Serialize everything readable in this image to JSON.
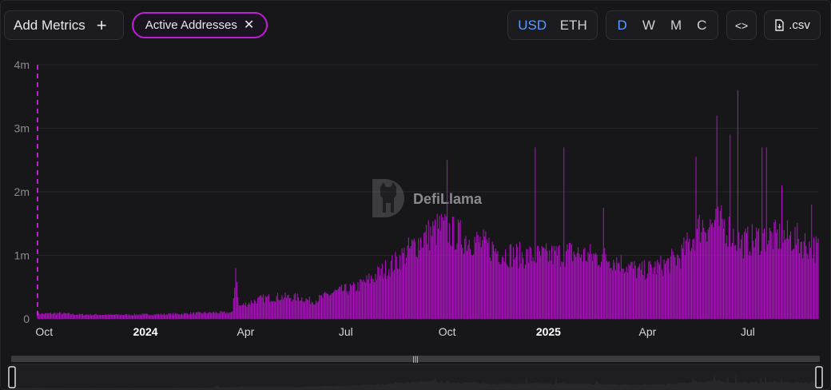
{
  "toolbar": {
    "add_metrics_label": "Add Metrics",
    "add_icon": "plus-icon",
    "metric_chip_label": "Active Addresses",
    "remove_icon": "close-icon",
    "currency_options": [
      "USD",
      "ETH"
    ],
    "currency_selected": "USD",
    "interval_options": [
      "D",
      "W",
      "M",
      "C"
    ],
    "interval_selected": "D",
    "embed_icon": "code-icon",
    "csv_label": ".csv",
    "csv_icon": "download-file-icon"
  },
  "watermark": {
    "text": "DefiLlama",
    "icon": "llama-logo-icon"
  },
  "colors": {
    "series": "#b010c4",
    "accent": "#5b9bff",
    "chip_border": "#c21dd6"
  },
  "chart_data": {
    "type": "bar",
    "title": "",
    "xlabel": "",
    "ylabel": "",
    "ylim": [
      0,
      4000000
    ],
    "y_ticks": [
      {
        "value": 0,
        "label": "0"
      },
      {
        "value": 1000000,
        "label": "1m"
      },
      {
        "value": 2000000,
        "label": "2m"
      },
      {
        "value": 3000000,
        "label": "3m"
      },
      {
        "value": 4000000,
        "label": "4m"
      }
    ],
    "x_range": [
      "2023-09-25",
      "2025-09-03"
    ],
    "x_ticks": [
      {
        "date": "2023-10-01",
        "label": "Oct",
        "bold": false
      },
      {
        "date": "2024-01-01",
        "label": "2024",
        "bold": true
      },
      {
        "date": "2024-04-01",
        "label": "Apr",
        "bold": false
      },
      {
        "date": "2024-07-01",
        "label": "Jul",
        "bold": false
      },
      {
        "date": "2024-10-01",
        "label": "Oct",
        "bold": false
      },
      {
        "date": "2025-01-01",
        "label": "2025",
        "bold": true
      },
      {
        "date": "2025-04-01",
        "label": "Apr",
        "bold": false
      },
      {
        "date": "2025-07-01",
        "label": "Jul",
        "bold": false
      }
    ],
    "grid": true,
    "series": [
      {
        "name": "Active Addresses",
        "color": "#b010c4",
        "frequency": "daily",
        "points": [
          [
            "2023-09-25",
            80000
          ],
          [
            "2023-10-15",
            90000
          ],
          [
            "2023-11-01",
            70000
          ],
          [
            "2023-12-01",
            65000
          ],
          [
            "2024-01-01",
            70000
          ],
          [
            "2024-02-01",
            80000
          ],
          [
            "2024-03-01",
            100000
          ],
          [
            "2024-03-20",
            100000
          ],
          [
            "2024-03-23",
            800000
          ],
          [
            "2024-03-26",
            200000
          ],
          [
            "2024-04-15",
            320000
          ],
          [
            "2024-05-01",
            350000
          ],
          [
            "2024-05-20",
            340000
          ],
          [
            "2024-06-01",
            280000
          ],
          [
            "2024-06-20",
            420000
          ],
          [
            "2024-07-10",
            500000
          ],
          [
            "2024-07-25",
            650000
          ],
          [
            "2024-08-15",
            900000
          ],
          [
            "2024-09-10",
            1300000
          ],
          [
            "2024-09-25",
            1450000
          ],
          [
            "2024-10-15",
            1300000
          ],
          [
            "2024-11-01",
            1200000
          ],
          [
            "2024-11-20",
            1050000
          ],
          [
            "2024-12-10",
            1000000
          ],
          [
            "2025-01-01",
            1000000
          ],
          [
            "2025-01-20",
            1050000
          ],
          [
            "2025-02-10",
            1000000
          ],
          [
            "2025-03-01",
            950000
          ],
          [
            "2025-03-25",
            750000
          ],
          [
            "2025-04-15",
            850000
          ],
          [
            "2025-05-01",
            1000000
          ],
          [
            "2025-05-20",
            1500000
          ],
          [
            "2025-06-10",
            1500000
          ],
          [
            "2025-06-25",
            1200000
          ],
          [
            "2025-07-15",
            1300000
          ],
          [
            "2025-08-10",
            1300000
          ],
          [
            "2025-09-03",
            1100000
          ]
        ],
        "spikes": [
          [
            "2024-03-23",
            800000
          ],
          [
            "2024-10-01",
            2500000
          ],
          [
            "2024-12-20",
            2700000
          ],
          [
            "2025-01-15",
            2700000
          ],
          [
            "2025-02-20",
            1750000
          ],
          [
            "2025-05-15",
            2550000
          ],
          [
            "2025-06-03",
            3200000
          ],
          [
            "2025-06-15",
            2900000
          ],
          [
            "2025-06-22",
            3600000
          ],
          [
            "2025-07-14",
            2700000
          ],
          [
            "2025-07-18",
            2700000
          ],
          [
            "2025-08-01",
            2100000
          ],
          [
            "2025-08-28",
            1800000
          ]
        ]
      }
    ]
  }
}
